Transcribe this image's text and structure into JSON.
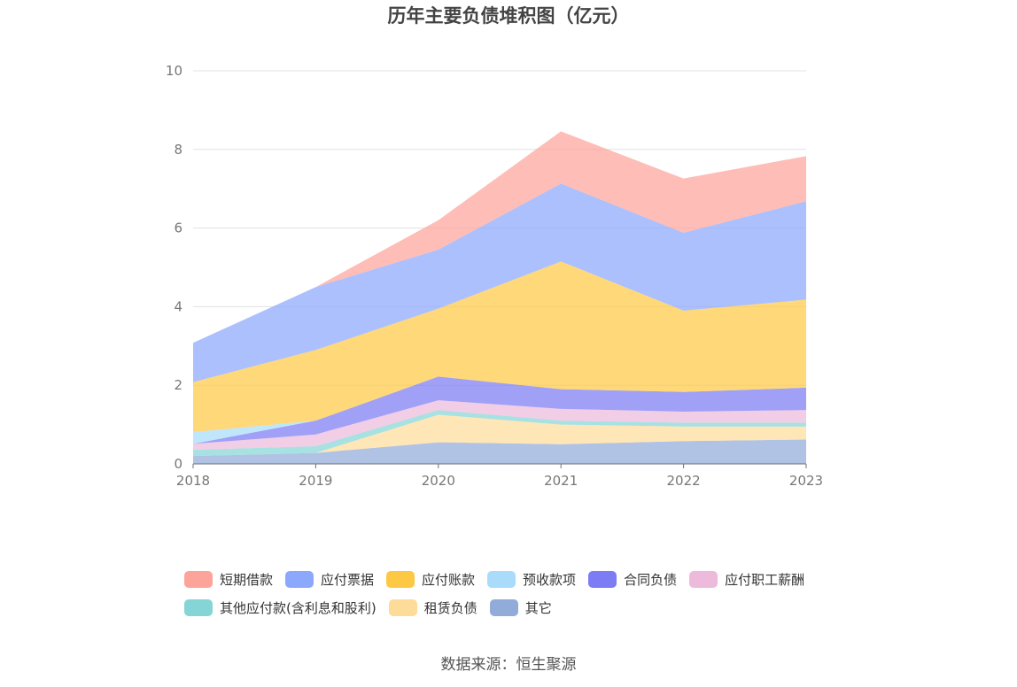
{
  "chart_data": {
    "type": "area",
    "stacked": true,
    "title": "历年主要负债堆积图（亿元）",
    "x": [
      "2018",
      "2019",
      "2020",
      "2021",
      "2022",
      "2023"
    ],
    "ylim": [
      0,
      10
    ],
    "yticks": [
      0,
      2,
      4,
      6,
      8,
      10
    ],
    "grid": true,
    "legend_position": "bottom",
    "series": [
      {
        "name": "其它",
        "color": "#91acd9",
        "values": [
          0.2,
          0.28,
          0.55,
          0.5,
          0.58,
          0.62
        ]
      },
      {
        "name": "租赁负债",
        "color": "#fddc9a",
        "values": [
          0.0,
          0.0,
          0.7,
          0.5,
          0.37,
          0.33
        ]
      },
      {
        "name": "其他应付款(含利息和股利)",
        "color": "#86d5d6",
        "values": [
          0.16,
          0.17,
          0.12,
          0.1,
          0.1,
          0.1
        ]
      },
      {
        "name": "应付职工薪酬",
        "color": "#edbadc",
        "values": [
          0.15,
          0.3,
          0.25,
          0.3,
          0.28,
          0.32
        ]
      },
      {
        "name": "合同负债",
        "color": "#7c7cf4",
        "values": [
          0.0,
          0.35,
          0.6,
          0.5,
          0.5,
          0.57
        ]
      },
      {
        "name": "预收款项",
        "color": "#a8dcfa",
        "values": [
          0.3,
          0.0,
          0.0,
          0.0,
          0.0,
          0.0
        ]
      },
      {
        "name": "应付账款",
        "color": "#fdc945",
        "values": [
          1.27,
          1.8,
          1.73,
          3.25,
          2.07,
          2.24
        ]
      },
      {
        "name": "应付票据",
        "color": "#8ba8fc",
        "values": [
          1.0,
          1.6,
          1.5,
          1.98,
          1.98,
          2.5
        ]
      },
      {
        "name": "短期借款",
        "color": "#fda49a",
        "values": [
          0.0,
          0.0,
          0.75,
          1.33,
          1.38,
          1.15
        ]
      }
    ],
    "legend_rows": [
      [
        "短期借款",
        "应付票据",
        "应付账款",
        "预收款项",
        "合同负债",
        "应付职工薪酬"
      ],
      [
        "其他应付款(含利息和股利)",
        "租赁负债",
        "其它"
      ]
    ]
  },
  "source_text": "数据来源：恒生聚源"
}
